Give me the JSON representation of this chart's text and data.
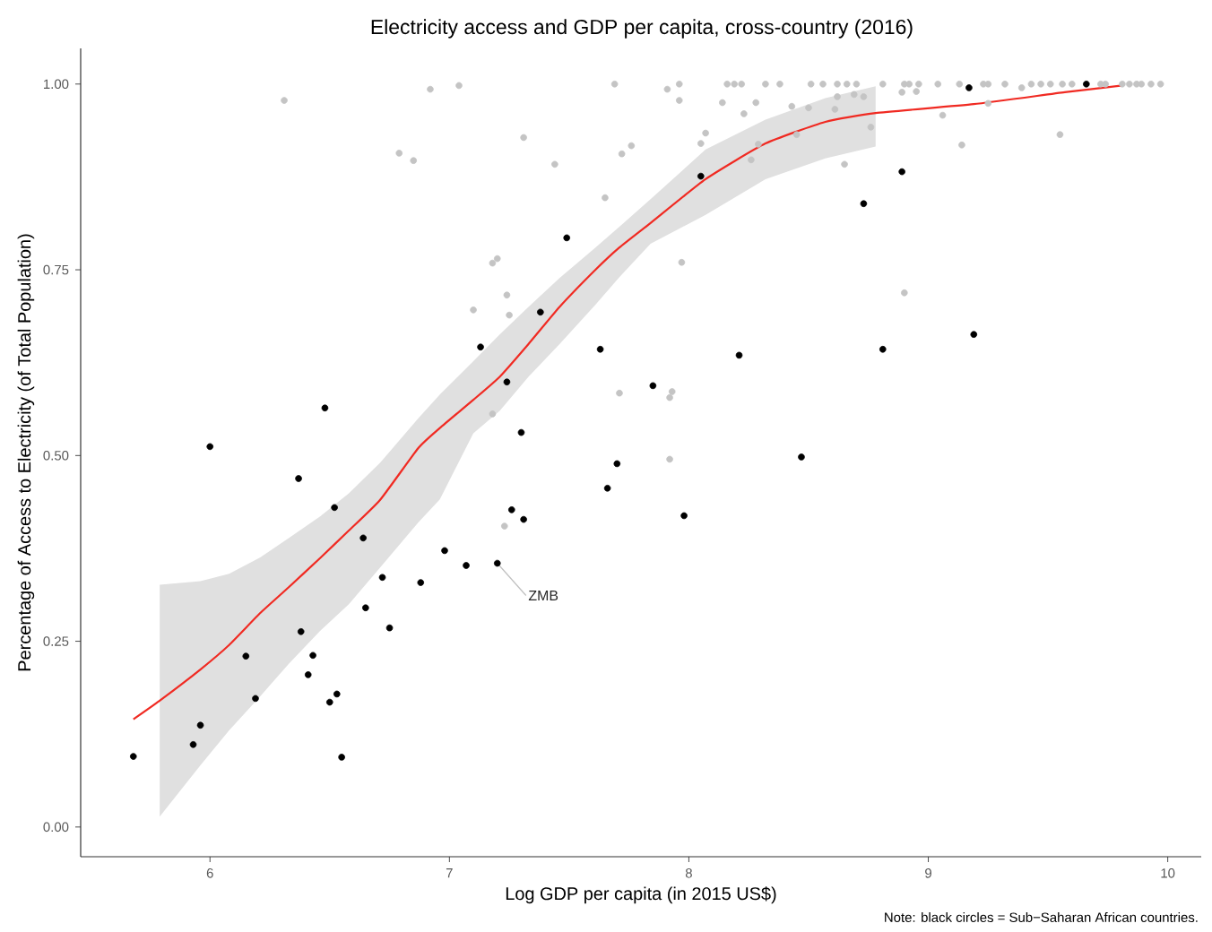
{
  "chart_data": {
    "type": "scatter",
    "title": "Electricity access and GDP per capita, cross-country (2016)",
    "xlabel": "Log GDP per capita (in 2015 US$)",
    "ylabel": "Percentage of Access to Electricity (of Total Population)",
    "xlim": [
      5.46,
      10.14
    ],
    "ylim": [
      -0.04,
      1.048
    ],
    "xticks": [
      6,
      7,
      8,
      9,
      10
    ],
    "yticks": [
      {
        "value": 0,
        "label": "0.00"
      },
      {
        "value": 0.25,
        "label": "0.25"
      },
      {
        "value": 0.5,
        "label": "0.50"
      },
      {
        "value": 0.75,
        "label": "0.75"
      },
      {
        "value": 1,
        "label": "1.00"
      }
    ],
    "series": [
      {
        "type": "scatter",
        "marker": "circle",
        "color": "#c4c4c4",
        "x": [
          6.31,
          6.92,
          7.04,
          6.79,
          6.85,
          7.31,
          7.44,
          7.69,
          7.72,
          7.76,
          7.65,
          7.18,
          7.2,
          7.24,
          7.1,
          7.25,
          7.18,
          7.71,
          7.23,
          7.96,
          8.16,
          8.19,
          8.22,
          8.32,
          8.38,
          8.51,
          8.56,
          8.62,
          8.66,
          8.7,
          8.81,
          8.9,
          8.92,
          8.96,
          9.04,
          9.13,
          9.23,
          9.25,
          9.32,
          9.43,
          9.47,
          9.51,
          9.56,
          9.6,
          9.72,
          9.74,
          9.81,
          9.84,
          9.87,
          9.89,
          9.93,
          9.97,
          7.91,
          7.96,
          8.14,
          8.28,
          8.23,
          8.43,
          8.5,
          8.61,
          8.62,
          8.69,
          8.73,
          8.76,
          8.89,
          8.95,
          9.06,
          9.14,
          9.25,
          9.39,
          9.55,
          8.05,
          8.07,
          8.29,
          8.26,
          8.65,
          7.97,
          8.9,
          8.45,
          7.92,
          7.92,
          7.93
        ],
        "values": [
          0.978,
          0.993,
          0.998,
          0.907,
          0.897,
          0.928,
          0.892,
          1.0,
          0.906,
          0.917,
          0.847,
          0.759,
          0.765,
          0.716,
          0.696,
          0.689,
          0.556,
          0.584,
          0.405,
          1.0,
          1.0,
          1.0,
          1.0,
          1.0,
          1.0,
          1.0,
          1.0,
          1.0,
          1.0,
          1.0,
          1.0,
          1.0,
          1.0,
          1.0,
          1.0,
          1.0,
          1.0,
          1.0,
          1.0,
          1.0,
          1.0,
          1.0,
          1.0,
          1.0,
          1.0,
          1.0,
          1.0,
          1.0,
          1.0,
          1.0,
          1.0,
          1.0,
          0.993,
          0.978,
          0.975,
          0.975,
          0.96,
          0.97,
          0.968,
          0.966,
          0.983,
          0.986,
          0.983,
          0.942,
          0.989,
          0.99,
          0.958,
          0.918,
          0.974,
          0.995,
          0.932,
          0.92,
          0.934,
          0.919,
          0.898,
          0.892,
          0.76,
          0.719,
          0.932,
          0.495,
          0.578,
          0.586
        ]
      },
      {
        "type": "scatter",
        "marker": "circle",
        "color": "#000000",
        "x": [
          5.68,
          5.93,
          5.96,
          6.0,
          6.15,
          6.19,
          6.37,
          6.38,
          6.41,
          6.43,
          6.48,
          6.5,
          6.52,
          6.53,
          6.55,
          6.64,
          6.65,
          6.72,
          6.75,
          6.88,
          6.98,
          7.07,
          7.2,
          7.26,
          7.31,
          7.3,
          7.13,
          7.24,
          7.38,
          7.49,
          7.63,
          7.66,
          7.7,
          7.85,
          7.98,
          8.05,
          8.21,
          8.47,
          8.73,
          8.81,
          8.89,
          9.17,
          9.19,
          9.66
        ],
        "values": [
          0.095,
          0.111,
          0.137,
          0.512,
          0.23,
          0.173,
          0.469,
          0.263,
          0.205,
          0.231,
          0.564,
          0.168,
          0.43,
          0.179,
          0.094,
          0.389,
          0.295,
          0.336,
          0.268,
          0.329,
          0.372,
          0.352,
          0.355,
          0.427,
          0.414,
          0.531,
          0.646,
          0.599,
          0.693,
          0.793,
          0.643,
          0.456,
          0.489,
          0.594,
          0.419,
          0.876,
          0.635,
          0.498,
          0.839,
          0.643,
          0.882,
          0.995,
          0.663,
          1.0
        ]
      },
      {
        "type": "line",
        "marker": "none",
        "color": "#f02a22",
        "x": [
          5.68,
          5.79,
          5.96,
          6.08,
          6.21,
          6.33,
          6.46,
          6.58,
          6.71,
          6.87,
          6.96,
          7.1,
          7.21,
          7.33,
          7.46,
          7.61,
          7.71,
          7.84,
          8.07,
          8.32,
          8.57,
          8.78,
          9.19,
          9.57,
          9.81
        ],
        "values": [
          0.145,
          0.17,
          0.212,
          0.245,
          0.288,
          0.323,
          0.362,
          0.399,
          0.44,
          0.51,
          0.537,
          0.575,
          0.606,
          0.65,
          0.7,
          0.75,
          0.78,
          0.813,
          0.872,
          0.92,
          0.949,
          0.961,
          0.973,
          0.989,
          0.998
        ],
        "upper": [
          null,
          0.326,
          0.331,
          0.341,
          0.363,
          0.389,
          0.418,
          0.449,
          0.49,
          0.55,
          0.582,
          0.627,
          0.663,
          0.7,
          0.739,
          0.78,
          0.808,
          0.845,
          0.912,
          0.952,
          0.981,
          0.997,
          null,
          null,
          null
        ],
        "lower": [
          null,
          0.014,
          0.083,
          0.13,
          0.176,
          0.22,
          0.264,
          0.3,
          0.349,
          0.41,
          0.441,
          0.53,
          0.56,
          0.606,
          0.65,
          0.703,
          0.74,
          0.785,
          0.824,
          0.872,
          0.9,
          0.916,
          null,
          null,
          null
        ]
      }
    ],
    "annotations": [
      {
        "text": "ZMB",
        "x": 7.2,
        "y": 0.355
      },
      "Note: black circles = Sub−Saharan African countries."
    ]
  }
}
